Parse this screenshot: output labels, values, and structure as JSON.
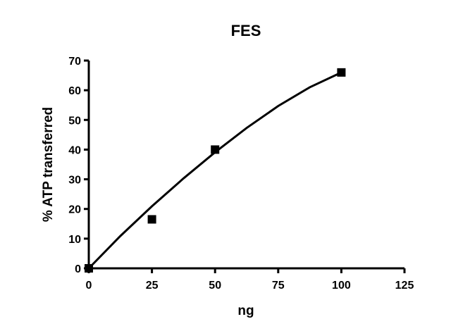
{
  "chart_data": {
    "type": "scatter",
    "title": "FES",
    "xlabel": "ng",
    "ylabel": "% ATP transferred",
    "xlim": [
      0,
      125
    ],
    "ylim": [
      0,
      70
    ],
    "xticks": [
      0,
      25,
      50,
      75,
      100,
      125
    ],
    "yticks": [
      0,
      10,
      20,
      30,
      40,
      50,
      60,
      70
    ],
    "grid": false,
    "legend": "none",
    "series": [
      {
        "marker": "square",
        "x": [
          0,
          25,
          50,
          100
        ],
        "y": [
          0,
          16.5,
          40,
          66
        ]
      }
    ],
    "fit_curve": {
      "x": [
        0,
        12.5,
        25,
        37.5,
        50,
        62.5,
        75,
        87.5,
        100
      ],
      "y": [
        0,
        10.9,
        20.9,
        30.3,
        39.1,
        47.3,
        54.7,
        61.0,
        66.0
      ]
    }
  }
}
